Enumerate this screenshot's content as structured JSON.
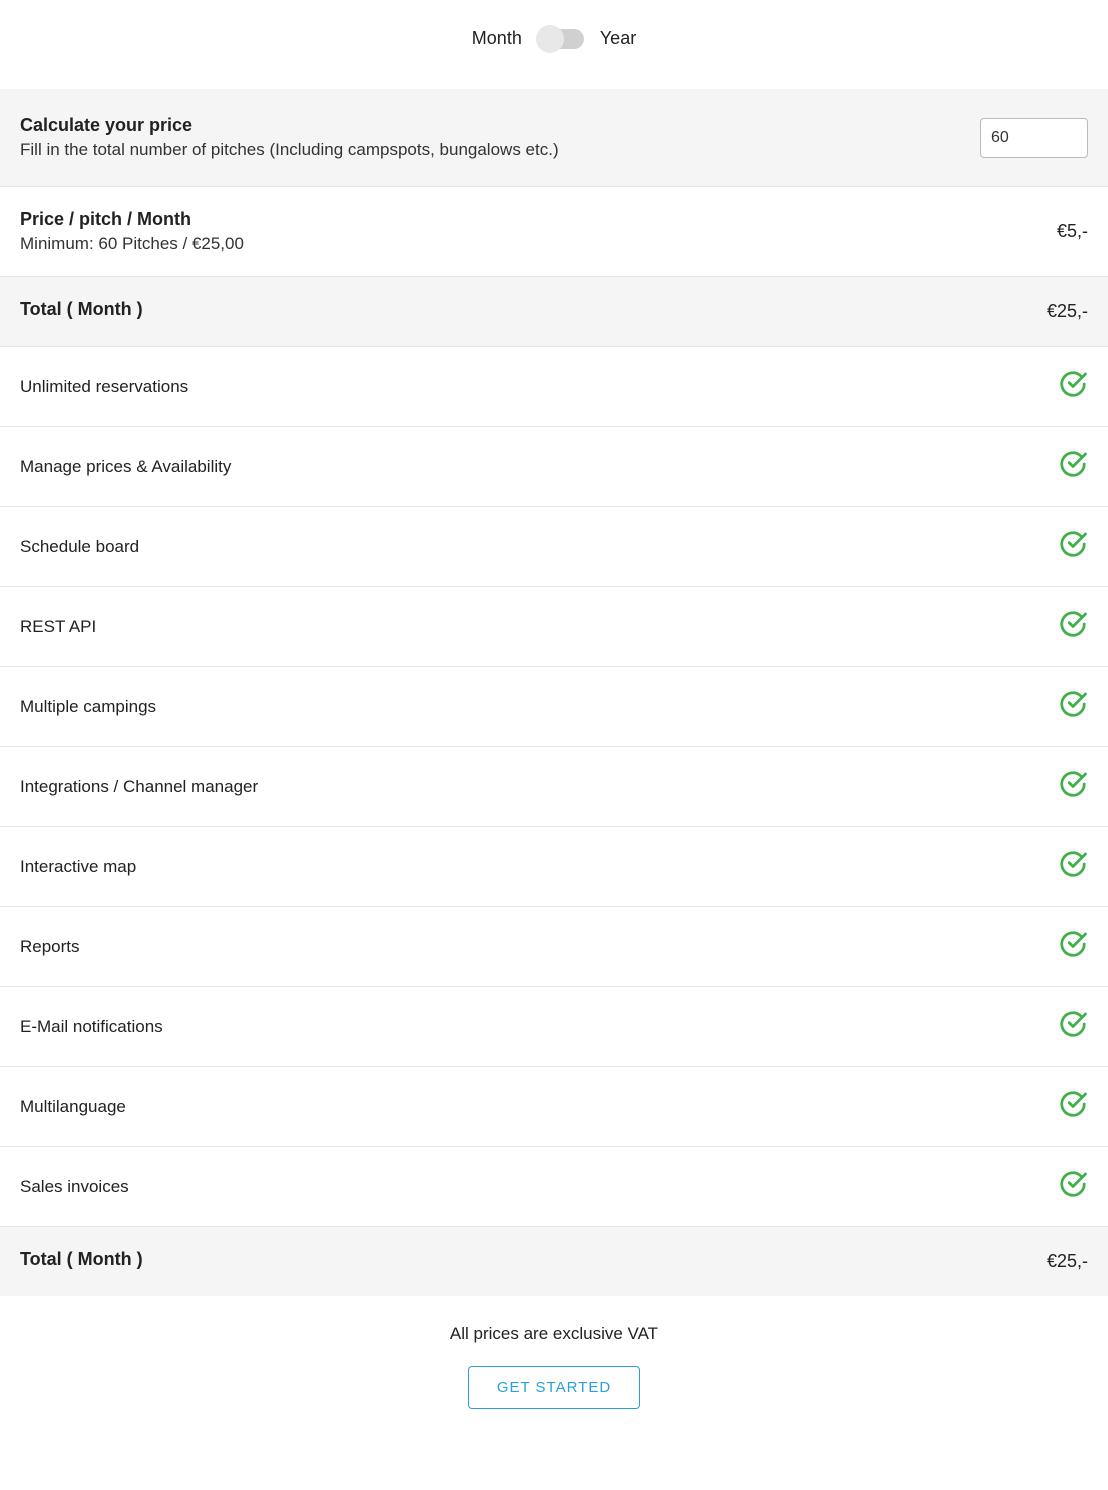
{
  "toggle": {
    "left_label": "Month",
    "right_label": "Year",
    "position": "left"
  },
  "calculate": {
    "title": "Calculate your price",
    "subtitle": "Fill in the total number of pitches (Including campspots, bungalows etc.)",
    "input_value": "60"
  },
  "price_row": {
    "title": "Price / pitch / Month",
    "subtitle": "Minimum: 60 Pitches / €25,00",
    "value": "€5,-"
  },
  "total_top": {
    "label": "Total ( Month )",
    "value": "€25,-"
  },
  "features": [
    {
      "label": "Unlimited reservations"
    },
    {
      "label": "Manage prices & Availability"
    },
    {
      "label": "Schedule board"
    },
    {
      "label": "REST API"
    },
    {
      "label": "Multiple campings"
    },
    {
      "label": "Integrations / Channel manager"
    },
    {
      "label": "Interactive map"
    },
    {
      "label": "Reports"
    },
    {
      "label": "E-Mail notifications"
    },
    {
      "label": "Multilanguage"
    },
    {
      "label": "Sales invoices"
    }
  ],
  "total_bottom": {
    "label": "Total ( Month )",
    "value": "€25,-"
  },
  "vat_note": "All prices are exclusive VAT",
  "cta": "GET STARTED",
  "colors": {
    "check_color": "#41b049",
    "cta_color": "#2aa0d6",
    "gray_bg": "#f5f5f5",
    "border": "#e6e6e6"
  }
}
